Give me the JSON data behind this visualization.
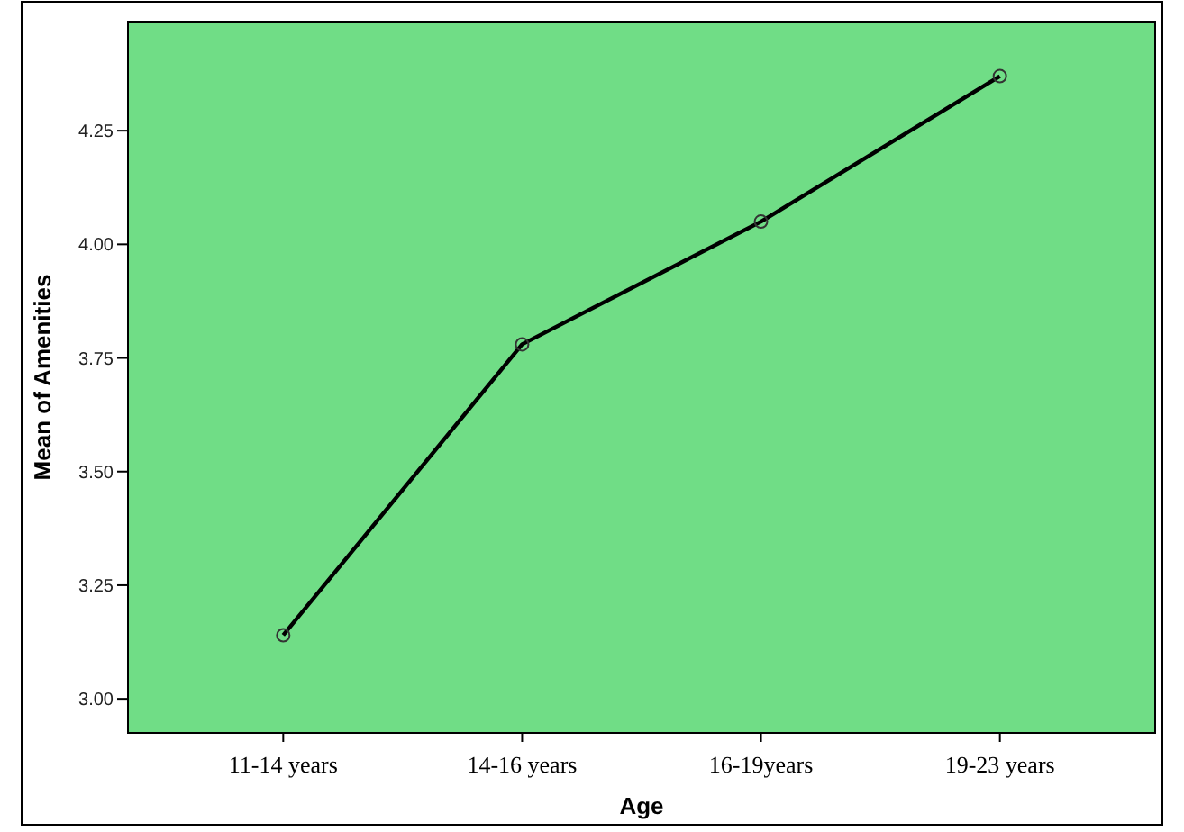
{
  "chart_data": {
    "type": "line",
    "xlabel": "Age",
    "ylabel": "Mean of Amenities",
    "categories": [
      "11-14 years",
      "14-16 years",
      "16-19years",
      "19-23 years"
    ],
    "series": [
      {
        "color": "#000000",
        "values": [
          3.14,
          3.78,
          4.05,
          4.37
        ]
      }
    ],
    "ylim": [
      2.925,
      4.49
    ],
    "yticks": [
      {
        "value": 3,
        "label": "3.00"
      },
      {
        "value": 3.25,
        "label": "3.25"
      },
      {
        "value": 3.5,
        "label": "3.50"
      },
      {
        "value": 3.75,
        "label": "3.75"
      },
      {
        "value": 4,
        "label": "4.00"
      },
      {
        "value": 4.25,
        "label": "4.25"
      }
    ],
    "marker": "circle",
    "line_style": "solid"
  }
}
